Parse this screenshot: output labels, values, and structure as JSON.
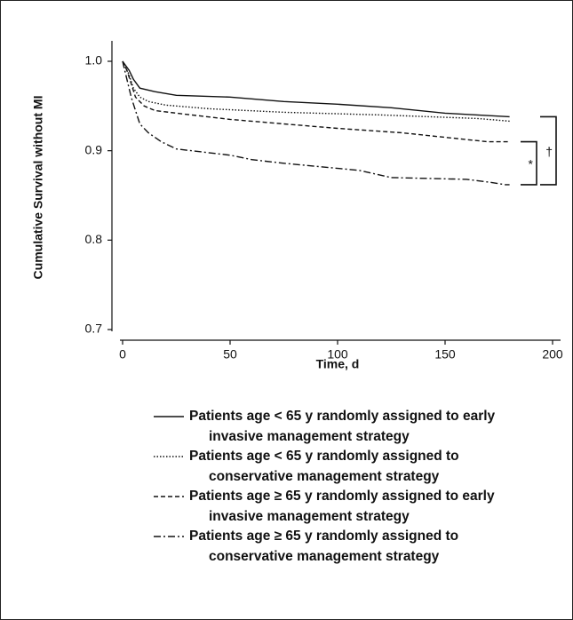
{
  "chart_data": {
    "type": "line",
    "ylabel": "Cumulative Survival without MI",
    "xlabel": "Time, d",
    "xlim": [
      0,
      200
    ],
    "ylim": [
      0.7,
      1.0
    ],
    "xticks": [
      0,
      50,
      100,
      150,
      200
    ],
    "yticks": [
      {
        "value": 0.7,
        "label": "0.7"
      },
      {
        "value": 0.8,
        "label": "0.8"
      },
      {
        "value": 0.9,
        "label": "0.9"
      },
      {
        "value": 1.0,
        "label": "1.0"
      }
    ],
    "series": [
      {
        "name": "Patients age < 65 y randomly assigned to early invasive management strategy",
        "color": "#111111",
        "dash": "solid",
        "x": [
          0,
          3,
          5,
          8,
          15,
          25,
          50,
          75,
          100,
          125,
          150,
          165,
          180
        ],
        "values": [
          1.0,
          0.99,
          0.98,
          0.97,
          0.966,
          0.962,
          0.96,
          0.955,
          0.952,
          0.948,
          0.942,
          0.94,
          0.938
        ]
      },
      {
        "name": "Patients age < 65 y randomly assigned to conservative management strategy",
        "color": "#111111",
        "dash": "dotted",
        "x": [
          0,
          3,
          5,
          8,
          12,
          20,
          40,
          75,
          120,
          165,
          180
        ],
        "values": [
          1.0,
          0.985,
          0.97,
          0.96,
          0.955,
          0.951,
          0.947,
          0.943,
          0.94,
          0.936,
          0.933
        ]
      },
      {
        "name": "Patients age ≥ 65 y randomly assigned to early invasive management strategy",
        "color": "#111111",
        "dash": "dashed",
        "x": [
          0,
          2,
          4,
          6,
          10,
          15,
          25,
          50,
          75,
          100,
          130,
          150,
          170,
          180
        ],
        "values": [
          1.0,
          0.99,
          0.975,
          0.96,
          0.95,
          0.945,
          0.942,
          0.935,
          0.93,
          0.925,
          0.92,
          0.915,
          0.91,
          0.91
        ]
      },
      {
        "name": "Patients age ≥ 65 y randomly assigned to conservative management strategy",
        "color": "#111111",
        "dash": "dashdot",
        "x": [
          0,
          2,
          4,
          6,
          8,
          12,
          18,
          25,
          50,
          60,
          75,
          110,
          125,
          160,
          170,
          178,
          180
        ],
        "values": [
          1.0,
          0.98,
          0.96,
          0.945,
          0.93,
          0.92,
          0.91,
          0.902,
          0.895,
          0.89,
          0.886,
          0.878,
          0.87,
          0.868,
          0.865,
          0.862,
          0.862
        ]
      }
    ],
    "annotations": [
      {
        "text": "*"
      },
      {
        "text": "†"
      }
    ]
  }
}
